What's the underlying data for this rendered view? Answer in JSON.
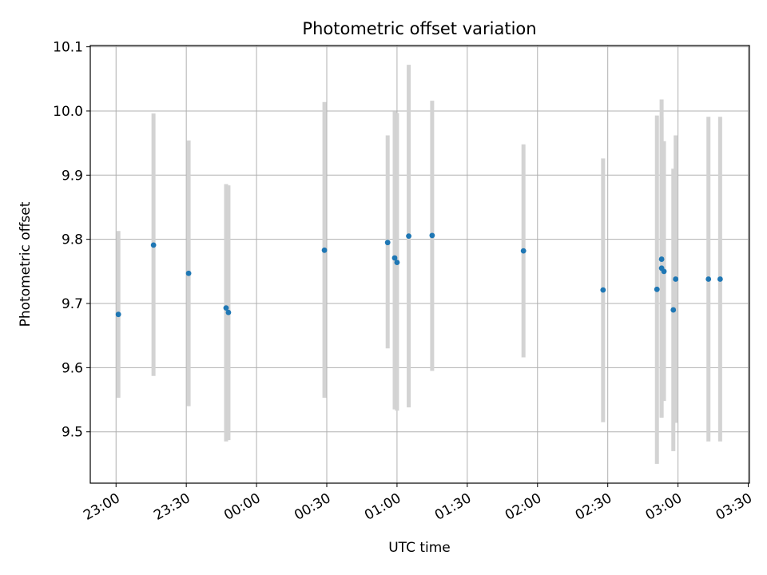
{
  "chart_data": {
    "type": "scatter",
    "title": "Photometric offset variation",
    "xlabel": "UTC time",
    "ylabel": "Photometric offset",
    "x_ticks": [
      "23:00",
      "23:30",
      "00:00",
      "00:30",
      "01:00",
      "01:30",
      "02:00",
      "02:30",
      "03:00",
      "03:30"
    ],
    "x_tick_minutes": [
      0,
      30,
      60,
      90,
      120,
      150,
      180,
      210,
      240,
      270
    ],
    "xlim_minutes": [
      -11,
      270.5
    ],
    "x_origin": "23:00 UTC",
    "y_ticks": [
      9.5,
      9.6,
      9.7,
      9.8,
      9.9,
      10.0,
      10.1
    ],
    "ylim": [
      9.42,
      10.102
    ],
    "grid": true,
    "marker_color": "#1f77b4",
    "errorbar_color": "#d3d3d3",
    "points": [
      {
        "x": "23:01",
        "y": 9.683,
        "lo": 9.553,
        "hi": 9.813
      },
      {
        "x": "23:16",
        "y": 9.791,
        "lo": 9.587,
        "hi": 9.996
      },
      {
        "x": "23:31",
        "y": 9.747,
        "lo": 9.54,
        "hi": 9.954
      },
      {
        "x": "23:47",
        "y": 9.693,
        "lo": 9.485,
        "hi": 9.886
      },
      {
        "x": "23:48",
        "y": 9.686,
        "lo": 9.487,
        "hi": 9.884
      },
      {
        "x": "00:29",
        "y": 9.783,
        "lo": 9.553,
        "hi": 10.014
      },
      {
        "x": "00:56",
        "y": 9.795,
        "lo": 9.63,
        "hi": 9.962
      },
      {
        "x": "00:59",
        "y": 9.771,
        "lo": 9.535,
        "hi": 9.999
      },
      {
        "x": "01:00",
        "y": 9.764,
        "lo": 9.533,
        "hi": 9.997
      },
      {
        "x": "01:05",
        "y": 9.805,
        "lo": 9.538,
        "hi": 10.072
      },
      {
        "x": "01:15",
        "y": 9.806,
        "lo": 9.595,
        "hi": 10.016
      },
      {
        "x": "01:54",
        "y": 9.782,
        "lo": 9.616,
        "hi": 9.948
      },
      {
        "x": "02:28",
        "y": 9.721,
        "lo": 9.515,
        "hi": 9.926
      },
      {
        "x": "02:51",
        "y": 9.722,
        "lo": 9.45,
        "hi": 9.993
      },
      {
        "x": "02:53",
        "y": 9.769,
        "lo": 9.522,
        "hi": 10.018
      },
      {
        "x": "02:53",
        "y": 9.755,
        "lo": 9.523,
        "hi": 9.99
      },
      {
        "x": "02:54",
        "y": 9.75,
        "lo": 9.548,
        "hi": 9.953
      },
      {
        "x": "02:58",
        "y": 9.69,
        "lo": 9.47,
        "hi": 9.91
      },
      {
        "x": "02:59",
        "y": 9.738,
        "lo": 9.514,
        "hi": 9.962
      },
      {
        "x": "03:13",
        "y": 9.738,
        "lo": 9.485,
        "hi": 9.991
      },
      {
        "x": "03:18",
        "y": 9.738,
        "lo": 9.485,
        "hi": 9.991
      }
    ]
  }
}
